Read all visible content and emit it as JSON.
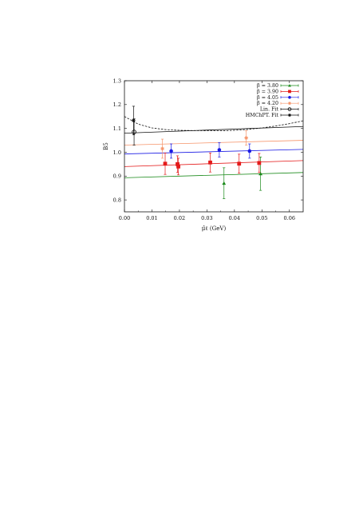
{
  "chart_data": {
    "type": "scatter",
    "xlabel": "μ̂ℓ (GeV)",
    "ylabel": "B5",
    "xlim": [
      0.0,
      0.065
    ],
    "ylim": [
      0.75,
      1.3
    ],
    "xticks": [
      "0.00",
      "0.01",
      "0.02",
      "0.03",
      "0.04",
      "0.05",
      "0.06"
    ],
    "xtick_values": [
      0.0,
      0.01,
      0.02,
      0.03,
      0.04,
      0.05,
      0.06
    ],
    "yticks": [
      "0.8",
      "0.9",
      "1.0",
      "1.1",
      "1.2",
      "1.3"
    ],
    "ytick_values": [
      0.8,
      0.9,
      1.0,
      1.1,
      1.2,
      1.3
    ],
    "grid": false,
    "legend_position": "top-right",
    "series": [
      {
        "name": "β = 3.80",
        "color": "#1a8a1a",
        "marker": "triangle",
        "points": [
          {
            "x": 0.0362,
            "y": 0.87,
            "err": 0.065
          },
          {
            "x": 0.0495,
            "y": 0.91,
            "err": 0.07
          }
        ],
        "band": {
          "x": [
            0.0,
            0.065
          ],
          "y": [
            0.893,
            0.915
          ]
        }
      },
      {
        "name": "β = 3.90",
        "color": "#e41a1a",
        "marker": "square",
        "points": [
          {
            "x": 0.0148,
            "y": 0.952,
            "err": 0.045
          },
          {
            "x": 0.0193,
            "y": 0.95,
            "err": 0.035
          },
          {
            "x": 0.0196,
            "y": 0.94,
            "err": 0.035
          },
          {
            "x": 0.0312,
            "y": 0.957,
            "err": 0.04
          },
          {
            "x": 0.0417,
            "y": 0.952,
            "err": 0.04
          },
          {
            "x": 0.049,
            "y": 0.955,
            "err": 0.04
          }
        ],
        "band": {
          "x": [
            0.0,
            0.065
          ],
          "y": [
            0.94,
            0.965
          ]
        }
      },
      {
        "name": "β = 4.05",
        "color": "#1a1ae4",
        "marker": "circle",
        "points": [
          {
            "x": 0.017,
            "y": 1.005,
            "err": 0.03
          },
          {
            "x": 0.0345,
            "y": 1.01,
            "err": 0.03
          },
          {
            "x": 0.0455,
            "y": 1.005,
            "err": 0.03
          }
        ],
        "band": {
          "x": [
            0.0,
            0.065
          ],
          "y": [
            0.993,
            1.012
          ]
        }
      },
      {
        "name": "β = 4.20",
        "color": "#f6946a",
        "marker": "star",
        "points": [
          {
            "x": 0.0138,
            "y": 1.015,
            "err": 0.04
          },
          {
            "x": 0.0443,
            "y": 1.06,
            "err": 0.03
          }
        ],
        "band": {
          "x": [
            0.0,
            0.065
          ],
          "y": [
            1.03,
            1.05
          ]
        }
      },
      {
        "name": "Lin. Fit",
        "color": "#111111",
        "marker": "open-circle",
        "points": [
          {
            "x": 0.0035,
            "y": 1.085,
            "err": 0.055
          }
        ],
        "line": {
          "x": [
            0.0,
            0.065
          ],
          "y": [
            1.08,
            1.108
          ],
          "style": "solid"
        }
      },
      {
        "name": "HMChPT. Fit",
        "color": "#111111",
        "marker": "star",
        "points": [
          {
            "x": 0.0033,
            "y": 1.133,
            "err": 0.06
          }
        ],
        "line": {
          "x": [
            0.0,
            0.005,
            0.01,
            0.015,
            0.02,
            0.025,
            0.03,
            0.035,
            0.04,
            0.045,
            0.05,
            0.055,
            0.06,
            0.065
          ],
          "y": [
            1.15,
            1.118,
            1.102,
            1.095,
            1.092,
            1.091,
            1.09,
            1.09,
            1.092,
            1.096,
            1.102,
            1.11,
            1.12,
            1.132
          ],
          "style": "dashed"
        }
      }
    ]
  }
}
